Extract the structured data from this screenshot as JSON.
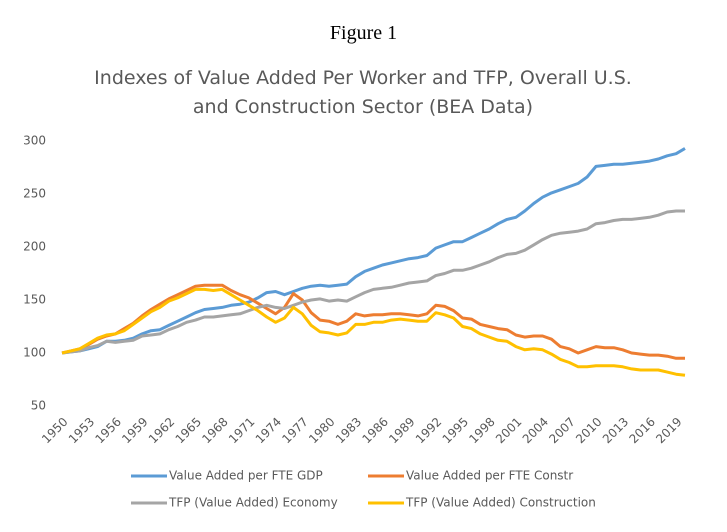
{
  "chart_data": {
    "type": "line",
    "figure_label": "Figure 1",
    "title": "Indexes of Value Added Per Worker and TFP, Overall U.S. and Construction Sector (BEA Data)",
    "x": [
      1950,
      1951,
      1952,
      1953,
      1954,
      1955,
      1956,
      1957,
      1958,
      1959,
      1960,
      1961,
      1962,
      1963,
      1964,
      1965,
      1966,
      1967,
      1968,
      1969,
      1970,
      1971,
      1972,
      1973,
      1974,
      1975,
      1976,
      1977,
      1978,
      1979,
      1980,
      1981,
      1982,
      1983,
      1984,
      1985,
      1986,
      1987,
      1988,
      1989,
      1990,
      1991,
      1992,
      1993,
      1994,
      1995,
      1996,
      1997,
      1998,
      1999,
      2000,
      2001,
      2002,
      2003,
      2004,
      2005,
      2006,
      2007,
      2008,
      2009,
      2010,
      2011,
      2012,
      2013,
      2014,
      2015,
      2016,
      2017,
      2018,
      2019,
      2020
    ],
    "xlim": [
      1950,
      2020
    ],
    "xticks": [
      1950,
      1953,
      1956,
      1959,
      1962,
      1965,
      1968,
      1971,
      1974,
      1977,
      1980,
      1983,
      1986,
      1989,
      1992,
      1995,
      1998,
      2001,
      2004,
      2007,
      2010,
      2013,
      2016,
      2019
    ],
    "ylim": [
      50,
      300
    ],
    "yticks": [
      50,
      100,
      150,
      200,
      250,
      300
    ],
    "grid": false,
    "legend": "bottom",
    "series": [
      {
        "name": "Value Added per FTE GDP",
        "color": "#5b9bd5",
        "values": [
          100,
          101,
          102,
          104,
          106,
          111,
          111,
          112,
          114,
          118,
          121,
          122,
          126,
          130,
          134,
          138,
          141,
          142,
          143,
          145,
          146,
          148,
          152,
          157,
          158,
          155,
          158,
          161,
          163,
          164,
          163,
          164,
          165,
          172,
          177,
          180,
          183,
          185,
          187,
          189,
          190,
          192,
          199,
          202,
          205,
          205,
          209,
          213,
          217,
          222,
          226,
          228,
          234,
          241,
          247,
          251,
          254,
          257,
          260,
          266,
          276,
          277,
          278,
          278,
          279,
          280,
          281,
          283,
          286,
          288,
          293
        ]
      },
      {
        "name": "Value Added per FTE Constr",
        "color": "#ed7d31",
        "values": [
          100,
          102,
          104,
          108,
          113,
          116,
          118,
          123,
          128,
          135,
          141,
          146,
          151,
          155,
          159,
          163,
          164,
          164,
          164,
          159,
          155,
          152,
          147,
          142,
          137,
          143,
          156,
          150,
          138,
          131,
          130,
          127,
          130,
          137,
          135,
          136,
          136,
          137,
          137,
          136,
          135,
          137,
          145,
          144,
          140,
          133,
          132,
          127,
          125,
          123,
          122,
          117,
          115,
          116,
          116,
          113,
          106,
          104,
          100,
          103,
          106,
          105,
          105,
          103,
          100,
          99,
          98,
          98,
          97,
          95,
          95
        ]
      },
      {
        "name": "TFP (Value Added) Economy",
        "color": "#a5a5a5",
        "values": [
          100,
          101,
          102,
          105,
          107,
          111,
          110,
          111,
          112,
          116,
          117,
          118,
          122,
          125,
          129,
          131,
          134,
          134,
          135,
          136,
          137,
          140,
          143,
          145,
          143,
          142,
          145,
          148,
          150,
          151,
          149,
          150,
          149,
          153,
          157,
          160,
          161,
          162,
          164,
          166,
          167,
          168,
          173,
          175,
          178,
          178,
          180,
          183,
          186,
          190,
          193,
          194,
          197,
          202,
          207,
          211,
          213,
          214,
          215,
          217,
          222,
          223,
          225,
          226,
          226,
          227,
          228,
          230,
          233,
          234,
          234
        ]
      },
      {
        "name": "TFP (Value Added) Construction",
        "color": "#ffc000",
        "values": [
          100,
          102,
          104,
          109,
          114,
          117,
          118,
          121,
          127,
          133,
          139,
          143,
          149,
          152,
          156,
          160,
          160,
          159,
          160,
          155,
          150,
          145,
          140,
          134,
          129,
          133,
          143,
          137,
          126,
          120,
          119,
          117,
          119,
          127,
          127,
          129,
          129,
          131,
          132,
          131,
          130,
          130,
          138,
          136,
          133,
          125,
          123,
          118,
          115,
          112,
          111,
          106,
          103,
          104,
          103,
          99,
          94,
          91,
          87,
          87,
          88,
          88,
          88,
          87,
          85,
          84,
          84,
          84,
          82,
          80,
          79
        ]
      }
    ]
  }
}
